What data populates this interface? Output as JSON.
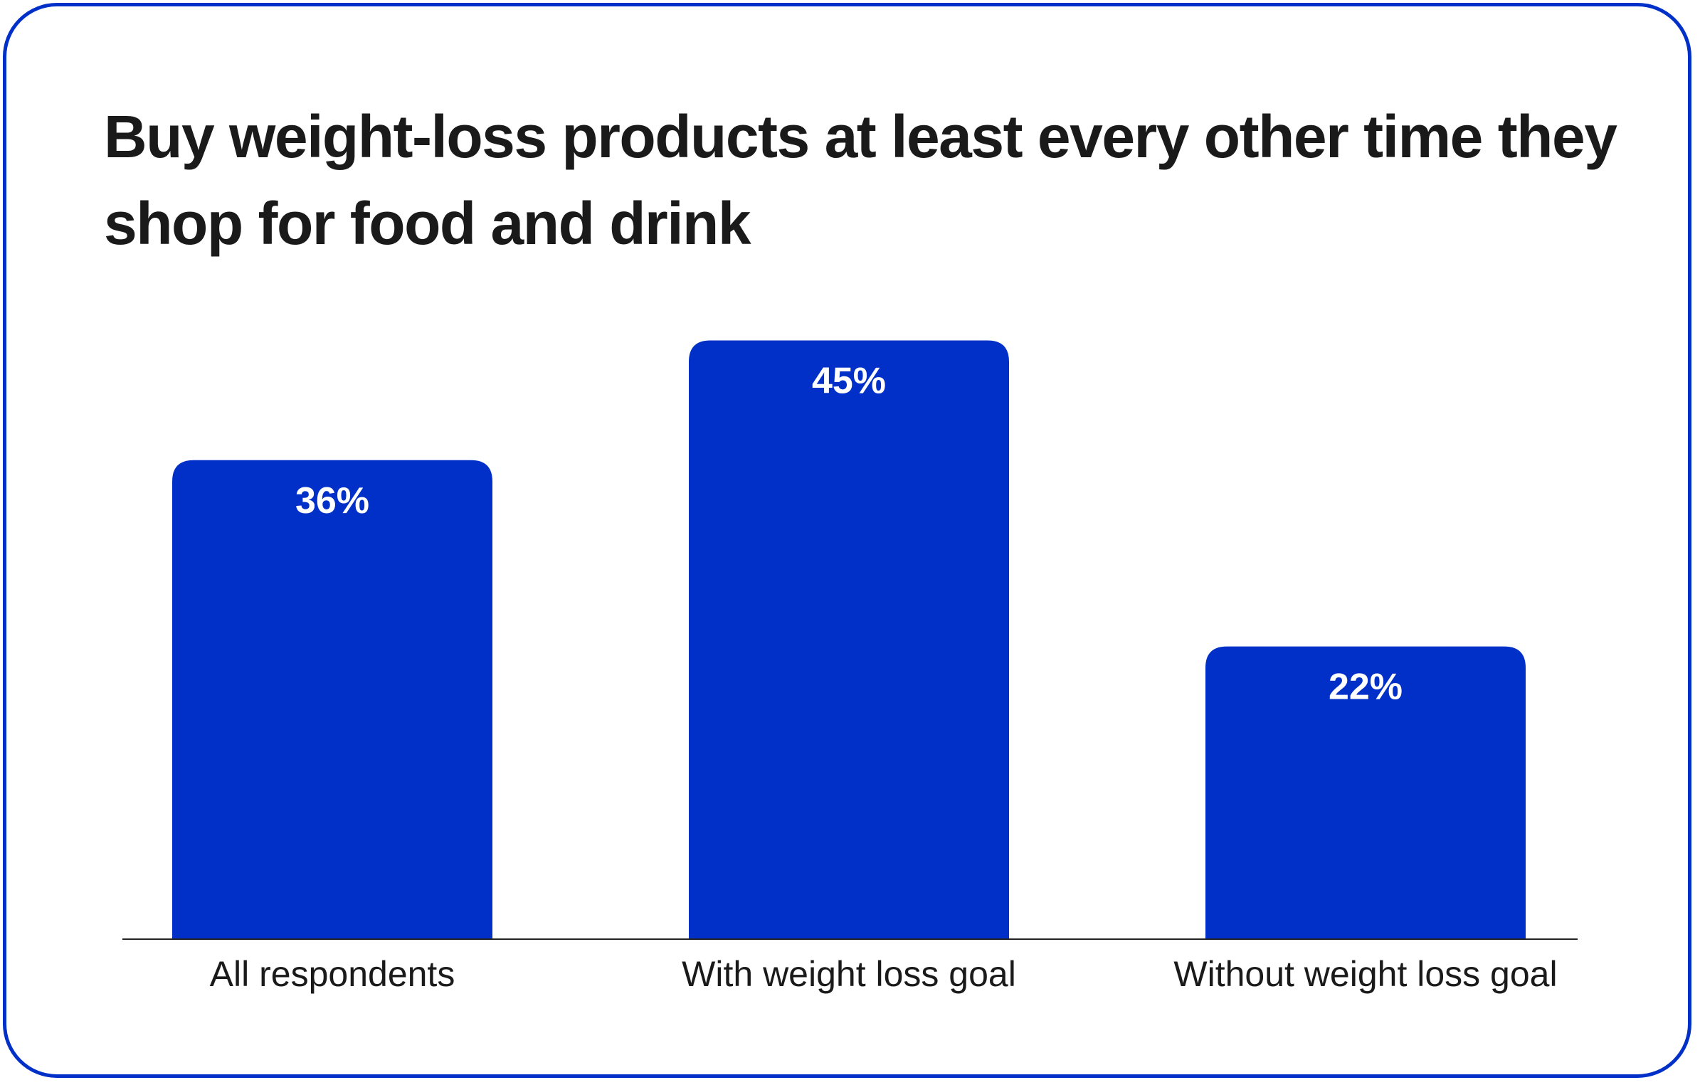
{
  "chart_data": {
    "type": "bar",
    "title": "Buy weight-loss products at least every other time they shop for food and drink",
    "categories": [
      "All respondents",
      "With weight loss goal",
      "Without weight loss goal"
    ],
    "values": [
      36,
      45,
      22
    ],
    "value_labels": [
      "36%",
      "45%",
      "22%"
    ],
    "unit": "%",
    "bar_color": "#0030c8",
    "grid": false,
    "legend": "none"
  }
}
